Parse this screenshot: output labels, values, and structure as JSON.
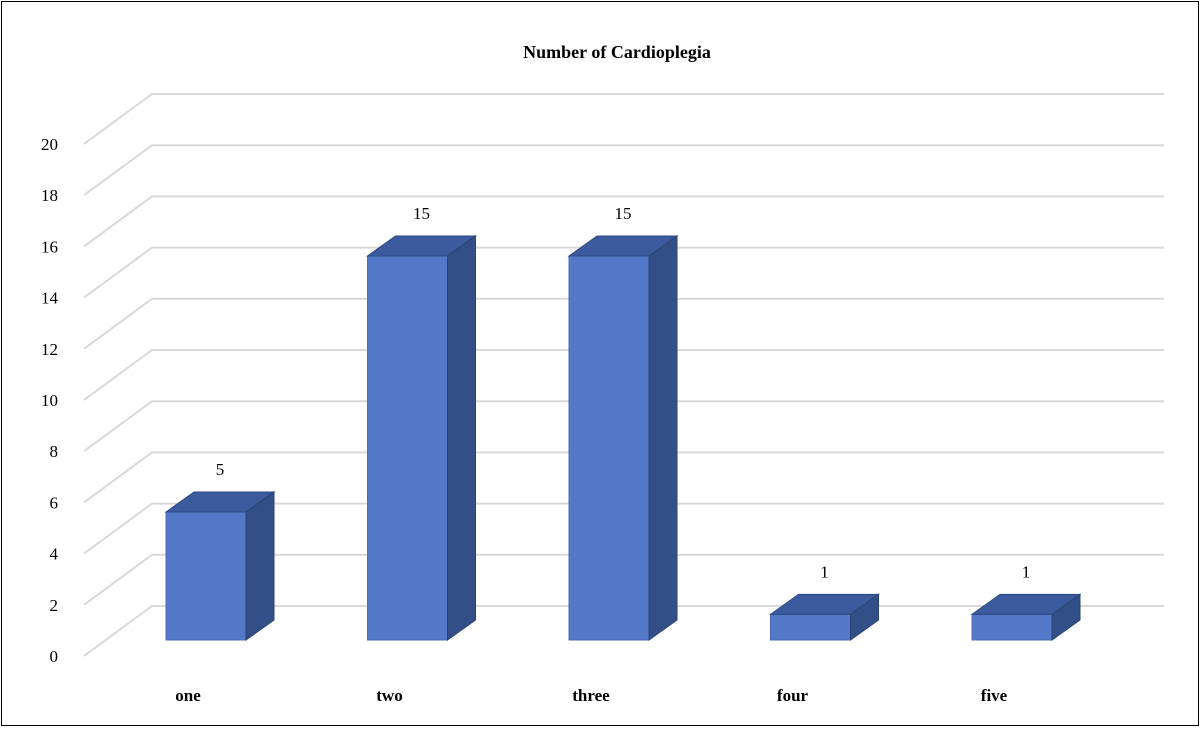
{
  "chart_data": {
    "type": "bar",
    "title": "Number of Cardioplegia",
    "xlabel": "",
    "ylabel": "",
    "categories": [
      "one",
      "two",
      "three",
      "four",
      "five"
    ],
    "values": [
      5,
      15,
      15,
      1,
      1
    ],
    "data_labels": [
      "5",
      "15",
      "15",
      "1",
      "1"
    ],
    "ylim": [
      0,
      20
    ],
    "y_ticks": [
      "0",
      "2",
      "4",
      "6",
      "8",
      "10",
      "12",
      "14",
      "16",
      "18",
      "20"
    ],
    "grid": true,
    "style": "3d-column",
    "colors": {
      "front": "#5579c9",
      "top": "#3c5b9f",
      "side": "#334f87",
      "grid": "#d9d9d9"
    }
  }
}
